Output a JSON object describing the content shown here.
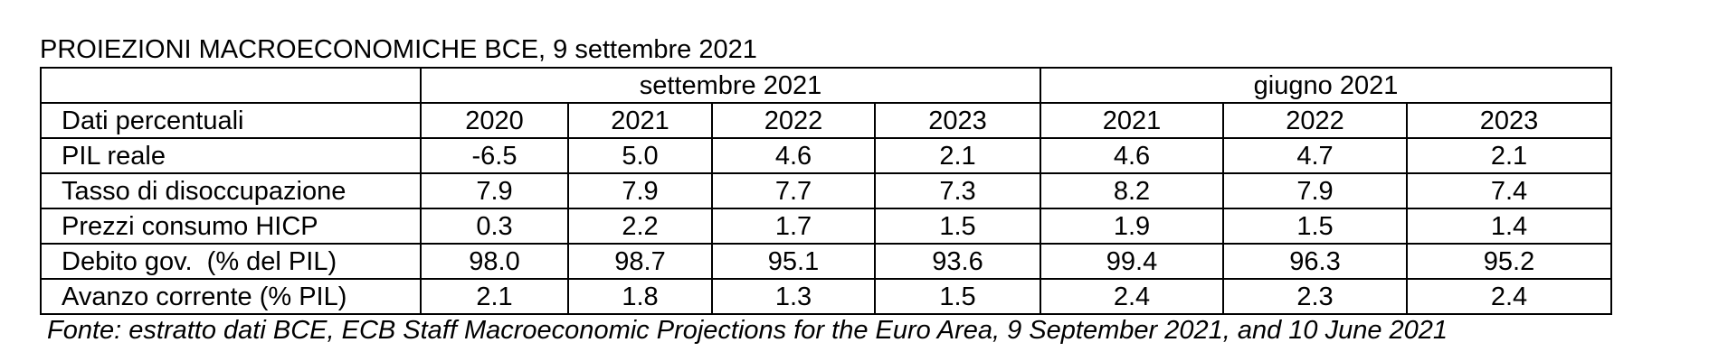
{
  "title": "PROIEZIONI MACROECONOMICHE BCE, 9 settembre 2021",
  "table": {
    "group_headers": [
      "settembre 2021",
      "giugno 2021"
    ],
    "row_header_label": "Dati percentuali",
    "years": [
      "2020",
      "2021",
      "2022",
      "2023",
      "2021",
      "2022",
      "2023"
    ],
    "rows": [
      {
        "label": "PIL reale",
        "values": [
          "-6.5",
          "5.0",
          "4.6",
          "2.1",
          "4.6",
          "4.7",
          "2.1"
        ]
      },
      {
        "label": "Tasso di disoccupazione",
        "values": [
          "7.9",
          "7.9",
          "7.7",
          "7.3",
          "8.2",
          "7.9",
          "7.4"
        ]
      },
      {
        "label": "Prezzi consumo HICP",
        "values": [
          "0.3",
          "2.2",
          "1.7",
          "1.5",
          "1.9",
          "1.5",
          "1.4"
        ]
      },
      {
        "label": "Debito gov.  (% del PIL)",
        "values": [
          "98.0",
          "98.7",
          "95.1",
          "93.6",
          "99.4",
          "96.3",
          "95.2"
        ]
      },
      {
        "label": "Avanzo corrente (% PIL)",
        "values": [
          "2.1",
          "1.8",
          "1.3",
          "1.5",
          "2.4",
          "2.3",
          "2.4"
        ]
      }
    ]
  },
  "source": "Fonte: estratto dati BCE, ECB Staff Macroeconomic Projections for the Euro Area, 9 September 2021, and 10 June 2021"
}
